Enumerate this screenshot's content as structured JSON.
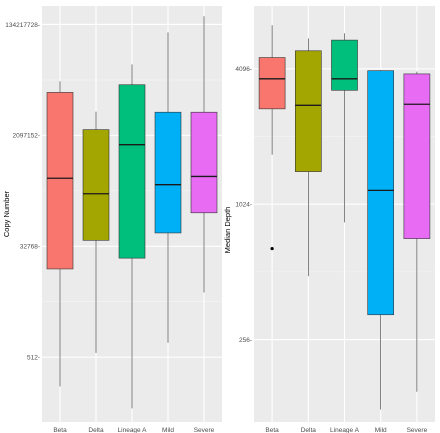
{
  "chart_data": [
    {
      "type": "box",
      "ylabel": "Copy Number",
      "xlabel": "",
      "scale": "log2",
      "ylim": [
        45,
        268435456
      ],
      "yticks": [
        512,
        32768,
        2097152,
        134217728
      ],
      "ytick_labels": [
        "512-",
        "32768-",
        "2097152-",
        "134217728-"
      ],
      "categories": [
        "Beta",
        "Delta",
        "Lineage A",
        "Mild",
        "Severe"
      ],
      "colors": [
        "#F8766D",
        "#A3A500",
        "#00BF7D",
        "#00B0F6",
        "#E76BF3"
      ],
      "boxes": [
        {
          "min": 170,
          "q1": 14000,
          "median": 420000,
          "q3": 10500000,
          "max": 16000000,
          "outliers": []
        },
        {
          "min": 600,
          "q1": 41000,
          "median": 235000,
          "q3": 2600000,
          "max": 5100000,
          "outliers": []
        },
        {
          "min": 75,
          "q1": 21000,
          "median": 1480000,
          "q3": 14000000,
          "max": 30000000,
          "outliers": []
        },
        {
          "min": 880,
          "q1": 54000,
          "median": 330000,
          "q3": 5000000,
          "max": 100000000,
          "outliers": []
        },
        {
          "min": 5800,
          "q1": 115000,
          "median": 450000,
          "q3": 5000000,
          "max": 183000000,
          "outliers": []
        }
      ]
    },
    {
      "type": "box",
      "ylabel": "Median Depth",
      "xlabel": "",
      "scale": "log2",
      "ylim": [
        110,
        7800
      ],
      "yticks": [
        256,
        1024,
        4096
      ],
      "ytick_labels": [
        "256-",
        "1024-",
        "4096-"
      ],
      "categories": [
        "Beta",
        "Delta",
        "Lineage A",
        "Mild",
        "Severe"
      ],
      "colors": [
        "#F8766D",
        "#A3A500",
        "#00BF7D",
        "#00B0F6",
        "#E76BF3"
      ],
      "boxes": [
        {
          "min": 1700,
          "q1": 2720,
          "median": 3700,
          "q3": 4600,
          "max": 6400,
          "outliers": [
            650
          ]
        },
        {
          "min": 490,
          "q1": 1430,
          "median": 2820,
          "q3": 4930,
          "max": 5600,
          "outliers": []
        },
        {
          "min": 850,
          "q1": 3290,
          "median": 3700,
          "q3": 5500,
          "max": 5900,
          "outliers": []
        },
        {
          "min": 125,
          "q1": 330,
          "median": 1180,
          "q3": 4020,
          "max": 4050,
          "outliers": []
        },
        {
          "min": 150,
          "q1": 720,
          "median": 2850,
          "q3": 3890,
          "max": 3980,
          "outliers": []
        }
      ]
    }
  ]
}
